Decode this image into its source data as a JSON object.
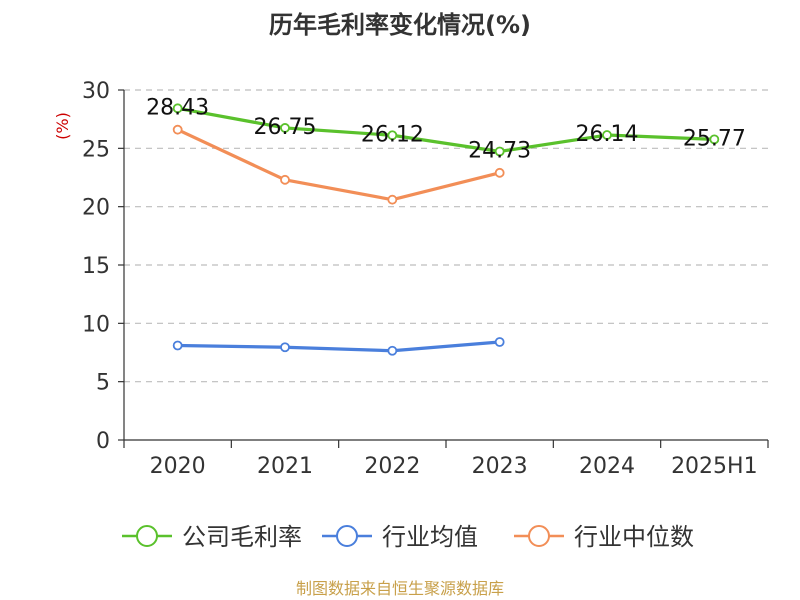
{
  "title": "历年毛利率变化情况(%)",
  "source": "制图数据来自恒生聚源数据库",
  "chart_data": {
    "type": "line",
    "title": "历年毛利率变化情况(%)",
    "ylabel": "(%)",
    "categories": [
      "2020",
      "2021",
      "2022",
      "2023",
      "2024",
      "2025H1"
    ],
    "ylim": [
      0,
      30
    ],
    "yticks": [
      0,
      5,
      10,
      15,
      20,
      25,
      30
    ],
    "grid": true,
    "legend_position": "bottom",
    "series": [
      {
        "name": "公司毛利率",
        "color": "#5ac12c",
        "values": [
          28.43,
          26.75,
          26.12,
          24.73,
          26.14,
          25.77
        ],
        "labels": [
          "28.43",
          "26.75",
          "26.12",
          "24.73",
          "26.14",
          "25.77"
        ]
      },
      {
        "name": "行业均值",
        "color": "#4a7fdc",
        "values": [
          8.1,
          7.95,
          7.65,
          8.4,
          null,
          null
        ]
      },
      {
        "name": "行业中位数",
        "color": "#f28e57",
        "values": [
          26.6,
          22.3,
          20.6,
          22.9,
          null,
          null
        ]
      }
    ]
  }
}
